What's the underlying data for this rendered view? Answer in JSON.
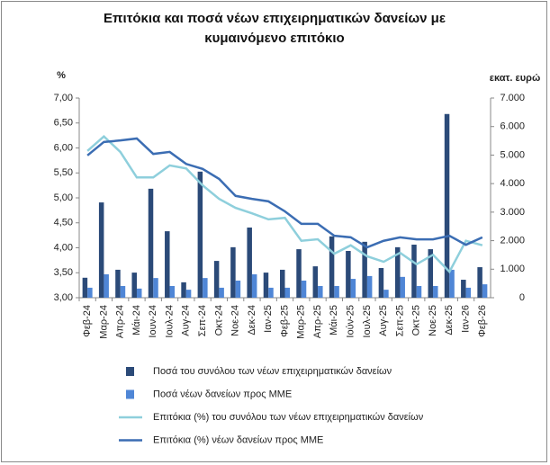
{
  "chart_data": {
    "type": "bar-line",
    "title": "Επιτόκια και ποσά νέων επιχειρηματικών δανείων με κυμαινόμενο επιτόκιο",
    "ylabel": "%",
    "y2label": "εκατ. ευρώ",
    "categories": [
      "Φεβ-24",
      "Μαρ-24",
      "Απρ-24",
      "Μάι-24",
      "Ιουν-24",
      "Ιουλ-24",
      "Αυγ-24",
      "Σεπ-24",
      "Οκτ-24",
      "Νοε-24",
      "Δεκ-24",
      "Ιαν-25",
      "Φεβ-25",
      "Μαρ-25",
      "Απρ-25",
      "Μάι-25",
      "Ιούν-25",
      "Ιουλ-25",
      "Αυγ-25",
      "Σεπ-25",
      "Οκτ-25",
      "Νοε-25",
      "Δεκ-25",
      "Ιαν-26",
      "Φεβ-26"
    ],
    "series": [
      {
        "name": "Ποσά του συνόλου των νέων επιχειρηματικών δανείων",
        "kind": "bar",
        "axis": "y2",
        "color": "#2b4a78",
        "values": [
          700,
          3340,
          980,
          880,
          3820,
          2330,
          540,
          4420,
          1290,
          1770,
          2460,
          880,
          980,
          1700,
          1100,
          2150,
          1640,
          1960,
          1040,
          1770,
          1860,
          1700,
          6440,
          630,
          1070
        ]
      },
      {
        "name": "Ποσά νέων δανείων προς ΜΜΕ",
        "kind": "bar",
        "axis": "y2",
        "color": "#4f86d6",
        "values": [
          350,
          820,
          410,
          320,
          690,
          410,
          280,
          690,
          350,
          600,
          820,
          350,
          350,
          600,
          410,
          410,
          660,
          760,
          280,
          730,
          410,
          410,
          980,
          350,
          470
        ]
      },
      {
        "name": "Επιτόκια (%) του συνόλου των νέων επιχειρηματικών δανείων",
        "kind": "line",
        "axis": "y",
        "color": "#8ecfdc",
        "values": [
          5.94,
          6.23,
          5.92,
          5.41,
          5.41,
          5.65,
          5.59,
          5.25,
          4.98,
          4.8,
          4.69,
          4.57,
          4.6,
          4.14,
          4.17,
          3.88,
          4.05,
          3.83,
          3.72,
          3.9,
          3.67,
          3.86,
          3.52,
          4.14,
          4.05
        ]
      },
      {
        "name": "Επιτόκια (%) νέων δανείων προς ΜΜΕ",
        "kind": "line",
        "axis": "y",
        "color": "#3b6db3",
        "values": [
          5.85,
          6.12,
          6.15,
          6.19,
          5.88,
          5.92,
          5.68,
          5.58,
          5.38,
          5.04,
          4.98,
          4.93,
          4.73,
          4.48,
          4.48,
          4.24,
          4.21,
          4.01,
          4.14,
          4.21,
          4.17,
          4.17,
          4.24,
          4.06,
          4.21
        ]
      }
    ],
    "ylim": [
      3,
      7
    ],
    "yticks": [
      {
        "value": 3,
        "label": "3,00"
      },
      {
        "value": 3.5,
        "label": "3,50"
      },
      {
        "value": 4,
        "label": "4,00"
      },
      {
        "value": 4.5,
        "label": "4,50"
      },
      {
        "value": 5,
        "label": "5,00"
      },
      {
        "value": 5.5,
        "label": "5,50"
      },
      {
        "value": 6,
        "label": "6,00"
      },
      {
        "value": 6.5,
        "label": "6,50"
      },
      {
        "value": 7,
        "label": "7,00"
      }
    ],
    "y2lim": [
      0,
      7000
    ],
    "y2ticks": [
      0,
      {
        "value": 1000,
        "label": "1.000"
      },
      {
        "value": 2000,
        "label": "2.000"
      },
      {
        "value": 3000,
        "label": "3.000"
      },
      {
        "value": 4000,
        "label": "4.000"
      },
      {
        "value": 5000,
        "label": "5.000"
      },
      {
        "value": 6000,
        "label": "6.000"
      },
      {
        "value": 7000,
        "label": "7.000"
      }
    ],
    "legend": "bottom"
  }
}
